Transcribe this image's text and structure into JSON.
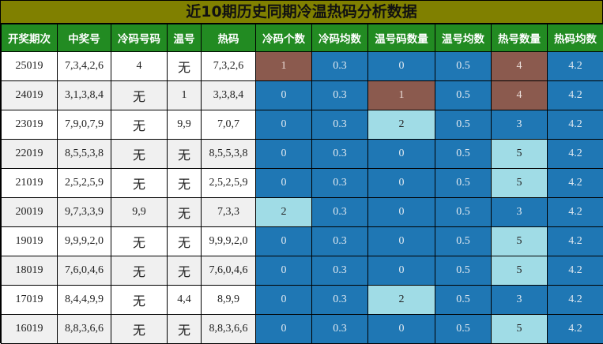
{
  "title": "近10期历史同期冷温热码分析数据",
  "headers": [
    "开奖期次",
    "中奖号",
    "冷码号码",
    "温号",
    "热码",
    "冷码个数",
    "冷码均数",
    "温号码数量",
    "温号均数",
    "热号数量",
    "热码均数"
  ],
  "colors": {
    "title_bg": "#808000",
    "header_bg": "#228B22",
    "normal": "#1F77B4",
    "high": "#8B5A4E",
    "highlight": "#A0DCE6"
  },
  "rows": [
    {
      "period": "25019",
      "numbers": "7,3,4,2,6",
      "cold": "4",
      "warm": "无",
      "hot": "7,3,2,6",
      "cold_count": "1",
      "cold_avg": "0.3",
      "warm_count": "0",
      "warm_avg": "0.5",
      "hot_count": "4",
      "hot_avg": "4.2",
      "status": [
        "high",
        "normal",
        "normal",
        "normal",
        "high",
        "normal"
      ]
    },
    {
      "period": "24019",
      "numbers": "3,1,3,8,4",
      "cold": "无",
      "warm": "1",
      "hot": "3,3,8,4",
      "cold_count": "0",
      "cold_avg": "0.3",
      "warm_count": "1",
      "warm_avg": "0.5",
      "hot_count": "4",
      "hot_avg": "4.2",
      "status": [
        "normal",
        "normal",
        "high",
        "normal",
        "high",
        "normal"
      ]
    },
    {
      "period": "23019",
      "numbers": "7,9,0,7,9",
      "cold": "无",
      "warm": "9,9",
      "hot": "7,0,7",
      "cold_count": "0",
      "cold_avg": "0.3",
      "warm_count": "2",
      "warm_avg": "0.5",
      "hot_count": "3",
      "hot_avg": "4.2",
      "status": [
        "normal",
        "normal",
        "highlight",
        "normal",
        "normal",
        "normal"
      ]
    },
    {
      "period": "22019",
      "numbers": "8,5,5,3,8",
      "cold": "无",
      "warm": "无",
      "hot": "8,5,5,3,8",
      "cold_count": "0",
      "cold_avg": "0.3",
      "warm_count": "0",
      "warm_avg": "0.5",
      "hot_count": "5",
      "hot_avg": "4.2",
      "status": [
        "normal",
        "normal",
        "normal",
        "normal",
        "highlight",
        "normal"
      ]
    },
    {
      "period": "21019",
      "numbers": "2,5,2,5,9",
      "cold": "无",
      "warm": "无",
      "hot": "2,5,2,5,9",
      "cold_count": "0",
      "cold_avg": "0.3",
      "warm_count": "0",
      "warm_avg": "0.5",
      "hot_count": "5",
      "hot_avg": "4.2",
      "status": [
        "normal",
        "normal",
        "normal",
        "normal",
        "highlight",
        "normal"
      ]
    },
    {
      "period": "20019",
      "numbers": "9,7,3,3,9",
      "cold": "9,9",
      "warm": "无",
      "hot": "7,3,3",
      "cold_count": "2",
      "cold_avg": "0.3",
      "warm_count": "0",
      "warm_avg": "0.5",
      "hot_count": "3",
      "hot_avg": "4.2",
      "status": [
        "highlight",
        "normal",
        "normal",
        "normal",
        "normal",
        "normal"
      ]
    },
    {
      "period": "19019",
      "numbers": "9,9,9,2,0",
      "cold": "无",
      "warm": "无",
      "hot": "9,9,9,2,0",
      "cold_count": "0",
      "cold_avg": "0.3",
      "warm_count": "0",
      "warm_avg": "0.5",
      "hot_count": "5",
      "hot_avg": "4.2",
      "status": [
        "normal",
        "normal",
        "normal",
        "normal",
        "highlight",
        "normal"
      ]
    },
    {
      "period": "18019",
      "numbers": "7,6,0,4,6",
      "cold": "无",
      "warm": "无",
      "hot": "7,6,0,4,6",
      "cold_count": "0",
      "cold_avg": "0.3",
      "warm_count": "0",
      "warm_avg": "0.5",
      "hot_count": "5",
      "hot_avg": "4.2",
      "status": [
        "normal",
        "normal",
        "normal",
        "normal",
        "highlight",
        "normal"
      ]
    },
    {
      "period": "17019",
      "numbers": "8,4,4,9,9",
      "cold": "无",
      "warm": "4,4",
      "hot": "8,9,9",
      "cold_count": "0",
      "cold_avg": "0.3",
      "warm_count": "2",
      "warm_avg": "0.5",
      "hot_count": "3",
      "hot_avg": "4.2",
      "status": [
        "normal",
        "normal",
        "highlight",
        "normal",
        "normal",
        "normal"
      ]
    },
    {
      "period": "16019",
      "numbers": "8,8,3,6,6",
      "cold": "无",
      "warm": "无",
      "hot": "8,8,3,6,6",
      "cold_count": "0",
      "cold_avg": "0.3",
      "warm_count": "0",
      "warm_avg": "0.5",
      "hot_count": "5",
      "hot_avg": "4.2",
      "status": [
        "normal",
        "normal",
        "normal",
        "normal",
        "highlight",
        "normal"
      ]
    }
  ]
}
